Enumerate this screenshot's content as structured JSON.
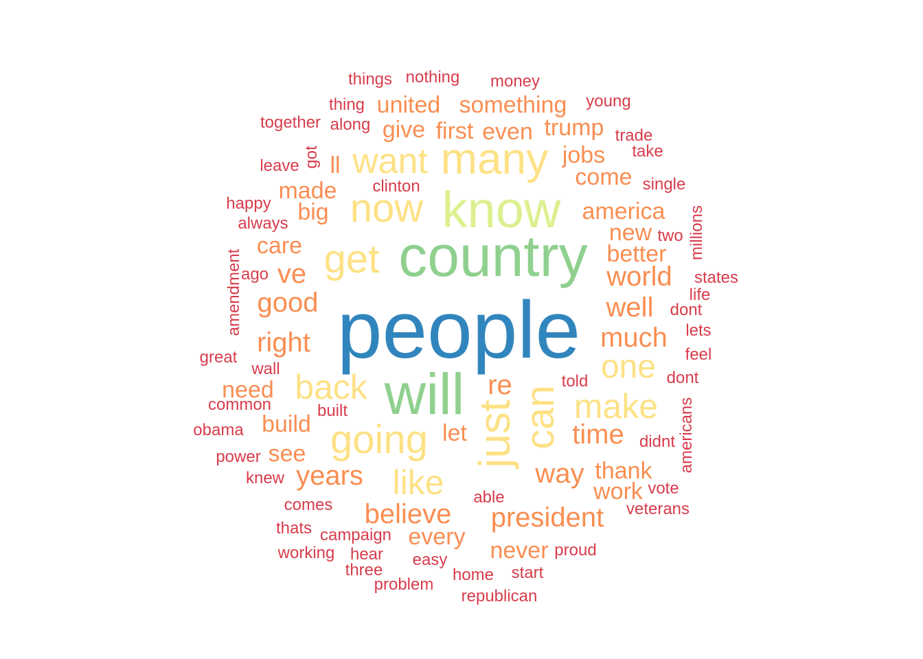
{
  "palette": {
    "blue": "#3185bd",
    "green": "#8fd08e",
    "lime": "#dcf08f",
    "yellow": "#fde185",
    "orange": "#f98e52",
    "red": "#d73c4b"
  },
  "words": [
    {
      "text": "people",
      "color": "blue",
      "rank": 1
    },
    {
      "text": "country",
      "color": "green",
      "rank": 2
    },
    {
      "text": "will",
      "color": "green",
      "rank": 3
    },
    {
      "text": "know",
      "color": "lime",
      "rank": 4
    },
    {
      "text": "many",
      "color": "yellow",
      "rank": 5
    },
    {
      "text": "just",
      "color": "yellow",
      "rank": 6,
      "vertical": true
    },
    {
      "text": "now",
      "color": "yellow",
      "rank": 7
    },
    {
      "text": "get",
      "color": "yellow",
      "rank": 8
    },
    {
      "text": "going",
      "color": "yellow",
      "rank": 9
    },
    {
      "text": "want",
      "color": "yellow",
      "rank": 10
    },
    {
      "text": "can",
      "color": "yellow",
      "rank": 11,
      "vertical": true
    },
    {
      "text": "back",
      "color": "yellow",
      "rank": 12
    },
    {
      "text": "make",
      "color": "yellow",
      "rank": 13
    },
    {
      "text": "like",
      "color": "yellow",
      "rank": 14
    },
    {
      "text": "one",
      "color": "yellow",
      "rank": 15
    },
    {
      "text": "president",
      "color": "orange",
      "rank": 16
    },
    {
      "text": "believe",
      "color": "orange",
      "rank": 17
    },
    {
      "text": "right",
      "color": "orange",
      "rank": 18
    },
    {
      "text": "much",
      "color": "orange",
      "rank": 19
    },
    {
      "text": "world",
      "color": "orange",
      "rank": 20
    },
    {
      "text": "years",
      "color": "orange",
      "rank": 21
    },
    {
      "text": "good",
      "color": "orange",
      "rank": 22
    },
    {
      "text": "well",
      "color": "orange",
      "rank": 23
    },
    {
      "text": "way",
      "color": "orange",
      "rank": 24
    },
    {
      "text": "time",
      "color": "orange",
      "rank": 25
    },
    {
      "text": "ve",
      "color": "orange",
      "rank": 26
    },
    {
      "text": "re",
      "color": "orange",
      "rank": 27
    },
    {
      "text": "something",
      "color": "orange",
      "rank": 28
    },
    {
      "text": "america",
      "color": "orange",
      "rank": 29
    },
    {
      "text": "united",
      "color": "orange",
      "rank": 30
    },
    {
      "text": "trump",
      "color": "orange",
      "rank": 31
    },
    {
      "text": "thank",
      "color": "orange",
      "rank": 32
    },
    {
      "text": "never",
      "color": "orange",
      "rank": 33
    },
    {
      "text": "every",
      "color": "orange",
      "rank": 34
    },
    {
      "text": "jobs",
      "color": "orange",
      "rank": 35
    },
    {
      "text": "first",
      "color": "orange",
      "rank": 36
    },
    {
      "text": "even",
      "color": "orange",
      "rank": 37
    },
    {
      "text": "better",
      "color": "orange",
      "rank": 38
    },
    {
      "text": "made",
      "color": "orange",
      "rank": 39
    },
    {
      "text": "give",
      "color": "orange",
      "rank": 40
    },
    {
      "text": "work",
      "color": "orange",
      "rank": 41
    },
    {
      "text": "come",
      "color": "orange",
      "rank": 42
    },
    {
      "text": "new",
      "color": "orange",
      "rank": 43
    },
    {
      "text": "big",
      "color": "orange",
      "rank": 44
    },
    {
      "text": "care",
      "color": "orange",
      "rank": 45
    },
    {
      "text": "build",
      "color": "orange",
      "rank": 46
    },
    {
      "text": "need",
      "color": "orange",
      "rank": 47
    },
    {
      "text": "let",
      "color": "orange",
      "rank": 48
    },
    {
      "text": "see",
      "color": "orange",
      "rank": 49
    },
    {
      "text": "ll",
      "color": "orange",
      "rank": 50
    },
    {
      "text": "states",
      "color": "red",
      "rank": 51
    },
    {
      "text": "veterans",
      "color": "red",
      "rank": 52
    },
    {
      "text": "republican",
      "color": "red",
      "rank": 53
    },
    {
      "text": "campaign",
      "color": "red",
      "rank": 54
    },
    {
      "text": "amendment",
      "color": "red",
      "rank": 55,
      "vertical": true
    },
    {
      "text": "americans",
      "color": "red",
      "rank": 56,
      "vertical": true
    },
    {
      "text": "millions",
      "color": "red",
      "rank": 57,
      "vertical": true
    },
    {
      "text": "together",
      "color": "red",
      "rank": 58
    },
    {
      "text": "nothing",
      "color": "red",
      "rank": 59
    },
    {
      "text": "things",
      "color": "red",
      "rank": 60
    },
    {
      "text": "money",
      "color": "red",
      "rank": 61
    },
    {
      "text": "young",
      "color": "red",
      "rank": 62
    },
    {
      "text": "thing",
      "color": "red",
      "rank": 63
    },
    {
      "text": "along",
      "color": "red",
      "rank": 64
    },
    {
      "text": "trade",
      "color": "red",
      "rank": 65
    },
    {
      "text": "take",
      "color": "red",
      "rank": 66
    },
    {
      "text": "leave",
      "color": "red",
      "rank": 67
    },
    {
      "text": "got",
      "color": "red",
      "rank": 68,
      "vertical": true
    },
    {
      "text": "clinton",
      "color": "red",
      "rank": 69
    },
    {
      "text": "single",
      "color": "red",
      "rank": 70
    },
    {
      "text": "happy",
      "color": "red",
      "rank": 71
    },
    {
      "text": "always",
      "color": "red",
      "rank": 72
    },
    {
      "text": "two",
      "color": "red",
      "rank": 73
    },
    {
      "text": "ago",
      "color": "red",
      "rank": 74
    },
    {
      "text": "life",
      "color": "red",
      "rank": 75
    },
    {
      "text": "dont",
      "color": "red",
      "rank": 76
    },
    {
      "text": "lets",
      "color": "red",
      "rank": 77
    },
    {
      "text": "great",
      "color": "red",
      "rank": 78
    },
    {
      "text": "feel",
      "color": "red",
      "rank": 79
    },
    {
      "text": "wall",
      "color": "red",
      "rank": 80
    },
    {
      "text": "told",
      "color": "red",
      "rank": 81
    },
    {
      "text": "dont",
      "color": "red",
      "rank": 82
    },
    {
      "text": "common",
      "color": "red",
      "rank": 83
    },
    {
      "text": "built",
      "color": "red",
      "rank": 84
    },
    {
      "text": "obama",
      "color": "red",
      "rank": 85
    },
    {
      "text": "didnt",
      "color": "red",
      "rank": 86
    },
    {
      "text": "power",
      "color": "red",
      "rank": 87
    },
    {
      "text": "knew",
      "color": "red",
      "rank": 88
    },
    {
      "text": "able",
      "color": "red",
      "rank": 89
    },
    {
      "text": "vote",
      "color": "red",
      "rank": 90
    },
    {
      "text": "comes",
      "color": "red",
      "rank": 91
    },
    {
      "text": "thats",
      "color": "red",
      "rank": 92
    },
    {
      "text": "working",
      "color": "red",
      "rank": 93
    },
    {
      "text": "hear",
      "color": "red",
      "rank": 94
    },
    {
      "text": "proud",
      "color": "red",
      "rank": 95
    },
    {
      "text": "easy",
      "color": "red",
      "rank": 96
    },
    {
      "text": "three",
      "color": "red",
      "rank": 97
    },
    {
      "text": "home",
      "color": "red",
      "rank": 98
    },
    {
      "text": "start",
      "color": "red",
      "rank": 99
    },
    {
      "text": "problem",
      "color": "red",
      "rank": 100
    }
  ]
}
